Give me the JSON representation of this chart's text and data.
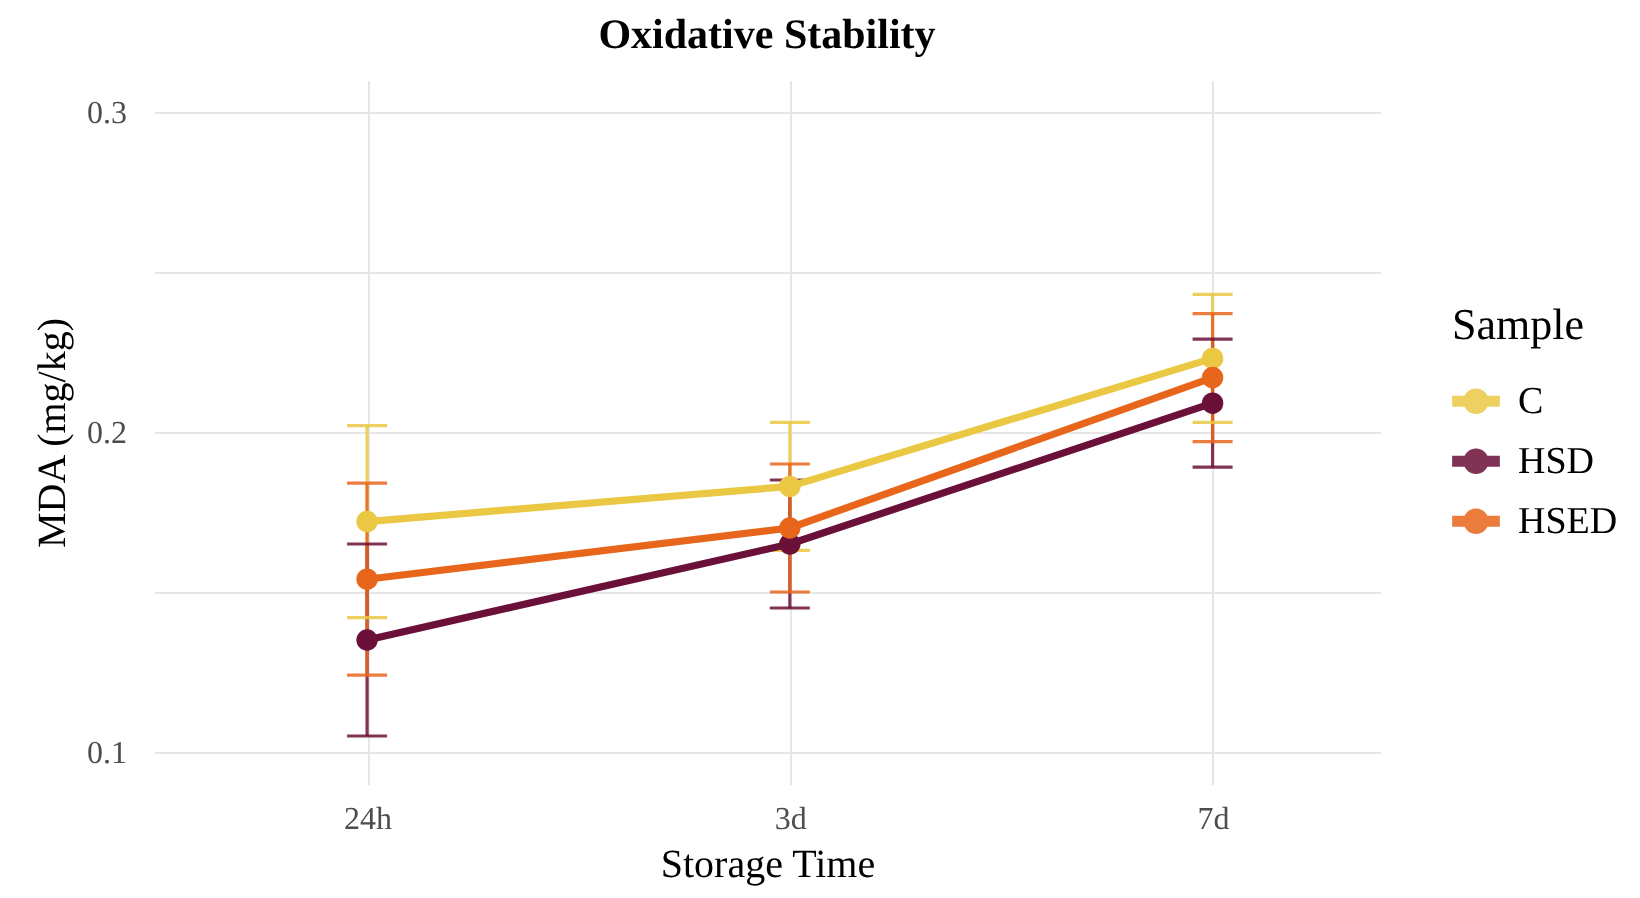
{
  "chart_data": {
    "type": "line",
    "title": "Oxidative Stability",
    "xlabel": "Storage Time",
    "ylabel": "MDA (mg/kg)",
    "legend_title": "Sample",
    "categories": [
      "24h",
      "3d",
      "7d"
    ],
    "series": [
      {
        "name": "C",
        "color": "#ebc844",
        "values": [
          0.172,
          0.183,
          0.223
        ],
        "errors": [
          0.03,
          0.02,
          0.02
        ]
      },
      {
        "name": "HSD",
        "color": "#6b1038",
        "values": [
          0.135,
          0.165,
          0.209
        ],
        "errors": [
          0.03,
          0.02,
          0.02
        ]
      },
      {
        "name": "HSED",
        "color": "#e8661c",
        "values": [
          0.154,
          0.17,
          0.217
        ],
        "errors": [
          0.03,
          0.02,
          0.02
        ]
      }
    ],
    "ylim": [
      0.09,
      0.31
    ],
    "yticks": [
      0.1,
      {
        "value": 0.15,
        "label": null
      },
      0.2,
      {
        "value": 0.25,
        "label": null
      },
      0.3
    ],
    "grid": true,
    "legend": "right",
    "marker": "circle",
    "line_style": "solid"
  }
}
